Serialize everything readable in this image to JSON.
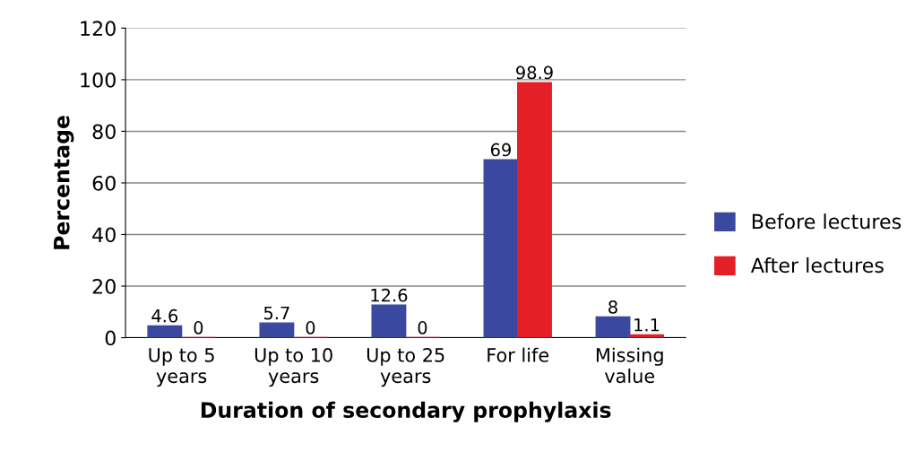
{
  "chart_data": {
    "type": "bar",
    "xlabel": "Duration of secondary prophylaxis",
    "ylabel": "Percentage",
    "categories": [
      "Up to 5\nyears",
      "Up to 10\nyears",
      "Up to 25\nyears",
      "For life",
      "Missing\nvalue"
    ],
    "series": [
      {
        "name": "Before lectures",
        "color": "#3b48a0",
        "values": [
          4.6,
          5.7,
          12.6,
          69,
          8
        ]
      },
      {
        "name": "After lectures",
        "color": "#e41f26",
        "values": [
          0,
          0,
          0,
          98.9,
          1.1
        ]
      }
    ],
    "ylim": [
      0,
      120
    ],
    "yticks": [
      0,
      20,
      40,
      60,
      80,
      100,
      120
    ],
    "grid": "y",
    "legend": "right",
    "data_labels": true
  }
}
